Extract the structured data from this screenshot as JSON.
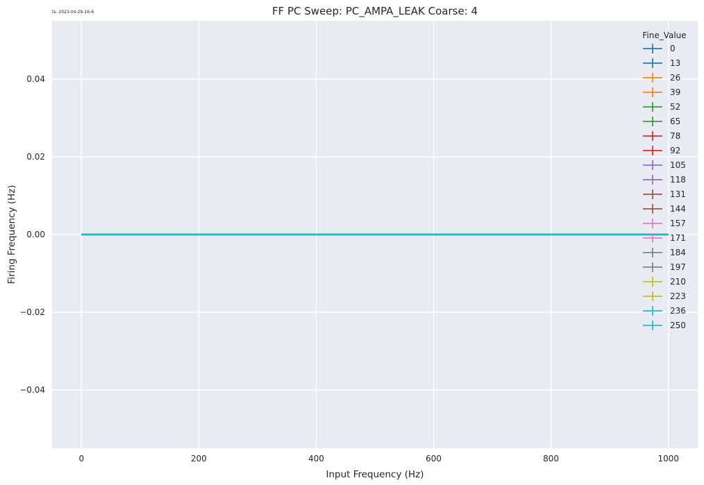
{
  "timestamp": "ts: 2023-04-29-16-6",
  "chart_data": {
    "type": "line",
    "title": "FF PC Sweep: PC_AMPA_LEAK Coarse: 4",
    "xlabel": "Input Frequency (Hz)",
    "ylabel": "Firing Frequency (Hz)",
    "xlim": [
      -50,
      1050
    ],
    "ylim": [
      -0.055,
      0.055
    ],
    "x_ticks": [
      0,
      200,
      400,
      600,
      800,
      1000
    ],
    "y_ticks": [
      -0.04,
      -0.02,
      0.0,
      0.02,
      0.04
    ],
    "y_tick_labels": [
      "−0.04",
      "−0.02",
      "0.00",
      "0.02",
      "0.04"
    ],
    "grid": true,
    "legend_title": "Fine_Value",
    "legend_position": "top-right",
    "x": [
      0,
      100,
      200,
      300,
      400,
      500,
      600,
      700,
      800,
      900,
      1000
    ],
    "series": [
      {
        "name": "0",
        "color": "#1f77b4",
        "values": [
          0,
          0,
          0,
          0,
          0,
          0,
          0,
          0,
          0,
          0,
          0
        ]
      },
      {
        "name": "13",
        "color": "#1f77b4",
        "values": [
          0,
          0,
          0,
          0,
          0,
          0,
          0,
          0,
          0,
          0,
          0
        ]
      },
      {
        "name": "26",
        "color": "#ff7f0e",
        "values": [
          0,
          0,
          0,
          0,
          0,
          0,
          0,
          0,
          0,
          0,
          0
        ]
      },
      {
        "name": "39",
        "color": "#ff7f0e",
        "values": [
          0,
          0,
          0,
          0,
          0,
          0,
          0,
          0,
          0,
          0,
          0
        ]
      },
      {
        "name": "52",
        "color": "#2ca02c",
        "values": [
          0,
          0,
          0,
          0,
          0,
          0,
          0,
          0,
          0,
          0,
          0
        ]
      },
      {
        "name": "65",
        "color": "#2ca02c",
        "values": [
          0,
          0,
          0,
          0,
          0,
          0,
          0,
          0,
          0,
          0,
          0
        ]
      },
      {
        "name": "78",
        "color": "#d62728",
        "values": [
          0,
          0,
          0,
          0,
          0,
          0,
          0,
          0,
          0,
          0,
          0
        ]
      },
      {
        "name": "92",
        "color": "#d62728",
        "values": [
          0,
          0,
          0,
          0,
          0,
          0,
          0,
          0,
          0,
          0,
          0
        ]
      },
      {
        "name": "105",
        "color": "#9467bd",
        "values": [
          0,
          0,
          0,
          0,
          0,
          0,
          0,
          0,
          0,
          0,
          0
        ]
      },
      {
        "name": "118",
        "color": "#9467bd",
        "values": [
          0,
          0,
          0,
          0,
          0,
          0,
          0,
          0,
          0,
          0,
          0
        ]
      },
      {
        "name": "131",
        "color": "#8c564b",
        "values": [
          0,
          0,
          0,
          0,
          0,
          0,
          0,
          0,
          0,
          0,
          0
        ]
      },
      {
        "name": "144",
        "color": "#8c564b",
        "values": [
          0,
          0,
          0,
          0,
          0,
          0,
          0,
          0,
          0,
          0,
          0
        ]
      },
      {
        "name": "157",
        "color": "#e377c2",
        "values": [
          0,
          0,
          0,
          0,
          0,
          0,
          0,
          0,
          0,
          0,
          0
        ]
      },
      {
        "name": "171",
        "color": "#e377c2",
        "values": [
          0,
          0,
          0,
          0,
          0,
          0,
          0,
          0,
          0,
          0,
          0
        ]
      },
      {
        "name": "184",
        "color": "#7f7f7f",
        "values": [
          0,
          0,
          0,
          0,
          0,
          0,
          0,
          0,
          0,
          0,
          0
        ]
      },
      {
        "name": "197",
        "color": "#7f7f7f",
        "values": [
          0,
          0,
          0,
          0,
          0,
          0,
          0,
          0,
          0,
          0,
          0
        ]
      },
      {
        "name": "210",
        "color": "#bcbd22",
        "values": [
          0,
          0,
          0,
          0,
          0,
          0,
          0,
          0,
          0,
          0,
          0
        ]
      },
      {
        "name": "223",
        "color": "#bcbd22",
        "values": [
          0,
          0,
          0,
          0,
          0,
          0,
          0,
          0,
          0,
          0,
          0
        ]
      },
      {
        "name": "236",
        "color": "#17becf",
        "values": [
          0,
          0,
          0,
          0,
          0,
          0,
          0,
          0,
          0,
          0,
          0
        ]
      },
      {
        "name": "250",
        "color": "#17becf",
        "values": [
          0,
          0,
          0,
          0,
          0,
          0,
          0,
          0,
          0,
          0,
          0
        ]
      }
    ]
  }
}
